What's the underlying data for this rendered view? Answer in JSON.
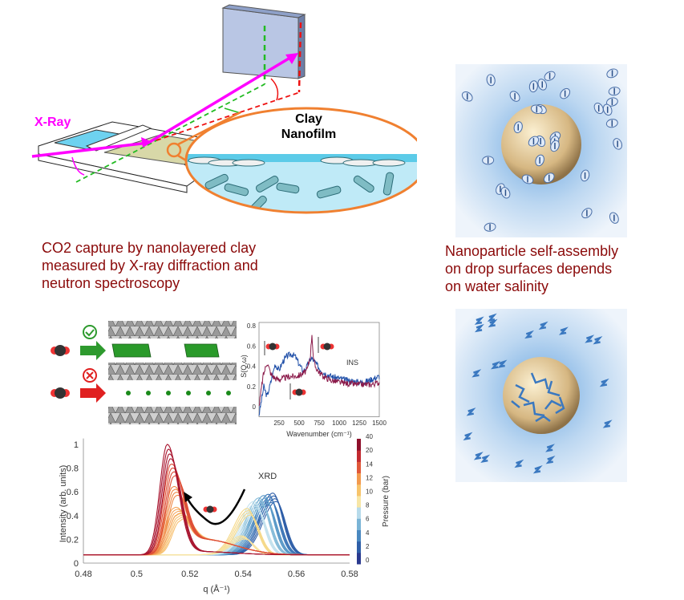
{
  "top_diagram": {
    "xray_label": "X-Ray",
    "nanofilm_label_line1": "Clay",
    "nanofilm_label_line2": "Nanofilm"
  },
  "left_caption": {
    "lines": [
      "CO2 capture by nanolayered clay",
      "measured by X-ray diffraction and",
      "neutron spectroscopy"
    ]
  },
  "right_caption": {
    "lines": [
      "Nanoparticle self-assembly",
      "on drop surfaces depends",
      "on water salinity"
    ]
  },
  "colors": {
    "caption": "#8b0a0a",
    "xray": "#ff00ff",
    "orange_ring": "#f08030",
    "ins_blue": "#1f4fa8",
    "ins_red": "#8b1a4a",
    "check_green": "#2e9a2e",
    "cross_red": "#e02020"
  },
  "chart_data": [
    {
      "type": "line",
      "title": "INS",
      "xlabel": "Wavenumber (cm⁻¹)",
      "ylabel": "S(Q,ω)",
      "xlim": [
        0,
        1500
      ],
      "ylim": [
        -0.1,
        0.8
      ],
      "xticks": [
        "250",
        "500",
        "750",
        "1000",
        "1250",
        "1500"
      ],
      "xtick_values": [
        250,
        500,
        750,
        1000,
        1250,
        1500
      ],
      "yticks": [
        "0",
        "0.2",
        "0.4",
        "0.6",
        "0.8"
      ],
      "ytick_values": [
        0,
        0.2,
        0.4,
        0.6,
        0.8
      ],
      "series": [
        {
          "name": "blue",
          "color": "#1f4fa8",
          "x": [
            0,
            60,
            100,
            150,
            200,
            250,
            300,
            350,
            400,
            450,
            500,
            550,
            600,
            650,
            700,
            750,
            800,
            900,
            1000,
            1100,
            1200,
            1300,
            1400,
            1500
          ],
          "y": [
            -0.08,
            0.2,
            0.1,
            0.25,
            0.42,
            0.36,
            0.45,
            0.5,
            0.52,
            0.5,
            0.42,
            0.35,
            0.4,
            0.48,
            0.44,
            0.38,
            0.34,
            0.3,
            0.28,
            0.26,
            0.25,
            0.24,
            0.27,
            0.3
          ]
        },
        {
          "name": "red",
          "color": "#8b1a4a",
          "x": [
            0,
            50,
            100,
            150,
            200,
            250,
            300,
            350,
            400,
            450,
            500,
            550,
            600,
            640,
            660,
            680,
            700,
            750,
            800,
            900,
            1000,
            1100,
            1200,
            1300,
            1400,
            1500
          ],
          "y": [
            0.0,
            0.3,
            0.44,
            0.32,
            0.28,
            0.27,
            0.28,
            0.29,
            0.3,
            0.3,
            0.31,
            0.33,
            0.36,
            0.5,
            0.72,
            0.46,
            0.4,
            0.34,
            0.3,
            0.26,
            0.24,
            0.23,
            0.22,
            0.22,
            0.22,
            0.24
          ]
        }
      ]
    },
    {
      "type": "line",
      "title": "XRD",
      "xlabel": "q (Å⁻¹)",
      "ylabel": "Intensity (arb. units)",
      "xlim": [
        0.48,
        0.58
      ],
      "ylim": [
        0,
        1.05
      ],
      "xticks": [
        "0.48",
        "0.5",
        "0.52",
        "0.54",
        "0.56",
        "0.58"
      ],
      "xtick_values": [
        0.48,
        0.5,
        0.52,
        0.54,
        0.56,
        0.58
      ],
      "yticks": [
        "0",
        "0.2",
        "0.4",
        "0.6",
        "0.8",
        "1"
      ],
      "ytick_values": [
        0,
        0.2,
        0.4,
        0.6,
        0.8,
        1
      ],
      "baseline": 0.07,
      "colorbar": {
        "label": "Pressure (bar)",
        "ticks": [
          "0",
          "2",
          "4",
          "6",
          "8",
          "10",
          "12",
          "14",
          "20",
          "40"
        ],
        "colors": [
          "#2a3a8f",
          "#2f5fa8",
          "#4a88c0",
          "#7ab4d6",
          "#b7dbeb",
          "#f7e6a6",
          "#f7c46b",
          "#f29a4e",
          "#e0583a",
          "#c22a30",
          "#8e0f2b"
        ]
      },
      "series": [
        {
          "pressure": 0,
          "peak_q": 0.5512,
          "height": 0.59,
          "color": "#2f5fa8"
        },
        {
          "pressure": 2,
          "peak_q": 0.5495,
          "height": 0.58,
          "color": "#3f78b8"
        },
        {
          "pressure": 4,
          "peak_q": 0.5478,
          "height": 0.57,
          "color": "#5b9ac8"
        },
        {
          "pressure": 6,
          "peak_q": 0.546,
          "height": 0.55,
          "color": "#86bcd9"
        },
        {
          "pressure": 8,
          "peak_q": 0.544,
          "height": 0.52,
          "color": "#c4e2ee"
        },
        {
          "pressure": 10,
          "peak_q": 0.5415,
          "height": 0.46,
          "color": "#f5d98a"
        },
        {
          "pressure": 11,
          "peak_q": 0.5395,
          "height": 0.23,
          "color": "#f7e3a0"
        },
        {
          "pressure": 12,
          "peak_q": 0.515,
          "height": 0.4,
          "color": "#f7c070"
        },
        {
          "pressure": 13,
          "peak_q": 0.5138,
          "height": 0.46,
          "color": "#f4a55a"
        },
        {
          "pressure": 14,
          "peak_q": 0.5135,
          "height": 0.64,
          "color": "#ef8a48"
        },
        {
          "pressure": 20,
          "peak_q": 0.5128,
          "height": 0.83,
          "color": "#de4e36"
        },
        {
          "pressure": 40,
          "peak_q": 0.5115,
          "height": 1.0,
          "color": "#a8142e"
        }
      ]
    }
  ]
}
